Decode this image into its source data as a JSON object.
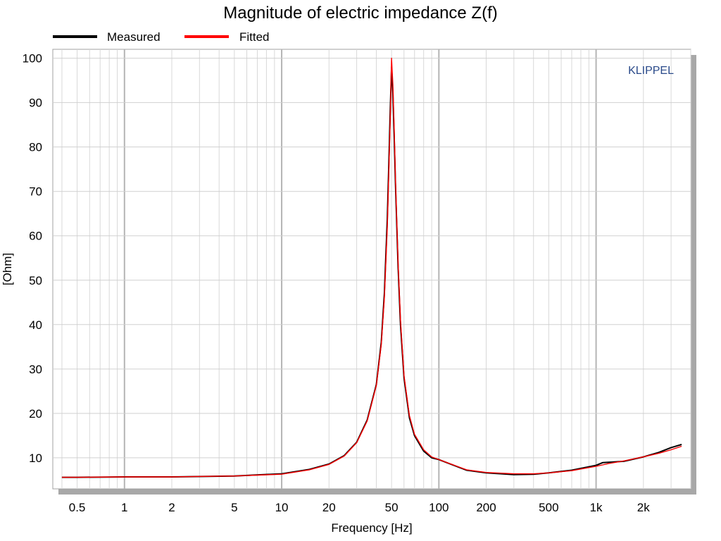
{
  "chart_data": {
    "type": "line",
    "title": "Magnitude of electric impedance Z(f)",
    "xlabel": "Frequency [Hz]",
    "ylabel": "[Ohm]",
    "x_scale": "log",
    "xlim": [
      0.35,
      4000
    ],
    "ylim": [
      3,
      102
    ],
    "grid": true,
    "legend_position": "top-left",
    "watermark": "KLIPPEL",
    "x_ticks": [
      {
        "value": 0.5,
        "label": "0.5"
      },
      {
        "value": 1,
        "label": "1"
      },
      {
        "value": 2,
        "label": "2"
      },
      {
        "value": 5,
        "label": "5"
      },
      {
        "value": 10,
        "label": "10"
      },
      {
        "value": 20,
        "label": "20"
      },
      {
        "value": 50,
        "label": "50"
      },
      {
        "value": 100,
        "label": "100"
      },
      {
        "value": 200,
        "label": "200"
      },
      {
        "value": 500,
        "label": "500"
      },
      {
        "value": 1000,
        "label": "1k"
      },
      {
        "value": 2000,
        "label": "2k"
      }
    ],
    "y_ticks": [
      {
        "value": 10,
        "label": "10"
      },
      {
        "value": 20,
        "label": "20"
      },
      {
        "value": 30,
        "label": "30"
      },
      {
        "value": 40,
        "label": "40"
      },
      {
        "value": 50,
        "label": "50"
      },
      {
        "value": 60,
        "label": "60"
      },
      {
        "value": 70,
        "label": "70"
      },
      {
        "value": 80,
        "label": "80"
      },
      {
        "value": 90,
        "label": "90"
      },
      {
        "value": 100,
        "label": "100"
      }
    ],
    "series": [
      {
        "name": "Measured",
        "color": "#000000",
        "x": [
          0.4,
          0.5,
          1,
          2,
          5,
          10,
          15,
          20,
          25,
          30,
          35,
          40,
          43,
          45,
          47,
          48,
          49,
          50,
          51,
          52,
          53,
          55,
          57,
          60,
          65,
          70,
          80,
          90,
          100,
          150,
          200,
          300,
          400,
          500,
          700,
          1000,
          1100,
          1200,
          1500,
          2000,
          2500,
          3000,
          3500
        ],
        "y": [
          5.6,
          5.6,
          5.7,
          5.7,
          5.9,
          6.4,
          7.4,
          8.6,
          10.5,
          13.5,
          18.5,
          26.5,
          36,
          47,
          64,
          76,
          88,
          98,
          92,
          82,
          71,
          53,
          40,
          28,
          19,
          15,
          11.5,
          10,
          9.6,
          7.2,
          6.6,
          6.2,
          6.3,
          6.6,
          7.2,
          8.3,
          8.9,
          9.0,
          9.2,
          10.2,
          11.2,
          12.3,
          13.0
        ]
      },
      {
        "name": "Fitted",
        "color": "#ff0000",
        "x": [
          0.4,
          0.5,
          1,
          2,
          5,
          10,
          15,
          20,
          25,
          30,
          35,
          40,
          43,
          45,
          47,
          48,
          49,
          50,
          51,
          52,
          53,
          55,
          57,
          60,
          65,
          70,
          80,
          90,
          100,
          150,
          200,
          300,
          400,
          500,
          700,
          1000,
          1100,
          1200,
          1500,
          2000,
          2500,
          3000,
          3500
        ],
        "y": [
          5.6,
          5.6,
          5.7,
          5.7,
          5.9,
          6.3,
          7.3,
          8.5,
          10.4,
          13.4,
          18.3,
          26.3,
          35.5,
          46,
          62,
          74,
          86,
          100,
          94,
          84,
          72,
          54,
          41,
          28.5,
          19.5,
          15.3,
          11.8,
          10.2,
          9.6,
          7.3,
          6.7,
          6.4,
          6.4,
          6.6,
          7.1,
          8.1,
          8.4,
          8.7,
          9.3,
          10.2,
          11.0,
          11.8,
          12.6
        ]
      }
    ]
  }
}
